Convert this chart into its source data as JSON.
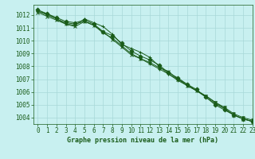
{
  "title": "Graphe pression niveau de la mer (hPa)",
  "background_color": "#c8f0f0",
  "grid_color": "#a8d8d8",
  "line_color": "#1a5c1a",
  "xlim": [
    -0.5,
    23
  ],
  "ylim": [
    1003.5,
    1012.8
  ],
  "yticks": [
    1004,
    1005,
    1006,
    1007,
    1008,
    1009,
    1010,
    1011,
    1012
  ],
  "xticks": [
    0,
    1,
    2,
    3,
    4,
    5,
    6,
    7,
    8,
    9,
    10,
    11,
    12,
    13,
    14,
    15,
    16,
    17,
    18,
    19,
    20,
    21,
    22,
    23
  ],
  "series": [
    [
      1012.4,
      1012.1,
      1011.8,
      1011.5,
      1011.4,
      1011.6,
      1011.3,
      1010.7,
      1010.4,
      1009.8,
      1009.2,
      1008.8,
      1008.5,
      1008.1,
      1007.5,
      1007.1,
      1006.6,
      1006.2,
      1005.6,
      1005.0,
      1004.6,
      1004.2,
      1003.9,
      1003.7
    ],
    [
      1012.3,
      1012.0,
      1011.7,
      1011.4,
      1011.3,
      1011.5,
      1011.2,
      1010.6,
      1010.2,
      1009.6,
      1009.0,
      1008.6,
      1008.2,
      1007.8,
      1007.4,
      1006.9,
      1006.5,
      1006.1,
      1005.7,
      1005.2,
      1004.8,
      1004.3,
      1004.0,
      1003.8
    ],
    [
      1012.3,
      1012.1,
      1011.7,
      1011.3,
      1011.2,
      1011.7,
      1011.4,
      1011.1,
      1010.5,
      1009.7,
      1009.4,
      1009.1,
      1008.7,
      1008.0,
      1007.4,
      1007.0,
      1006.6,
      1006.1,
      1005.6,
      1005.1,
      1004.7,
      1004.2,
      1003.9,
      1003.7
    ],
    [
      1012.2,
      1011.9,
      1011.6,
      1011.3,
      1011.1,
      1011.5,
      1011.2,
      1010.7,
      1010.1,
      1009.5,
      1008.9,
      1008.6,
      1008.3,
      1007.9,
      1007.6,
      1007.0,
      1006.5,
      1006.1,
      1005.7,
      1005.2,
      1004.7,
      1004.2,
      1003.9,
      1003.7
    ]
  ],
  "markers": [
    "D",
    "v",
    "+",
    "x"
  ],
  "markersizes": [
    2.5,
    2.5,
    3.5,
    3.5
  ],
  "linewidth": 0.7,
  "title_fontsize": 6,
  "tick_fontsize": 5.5
}
